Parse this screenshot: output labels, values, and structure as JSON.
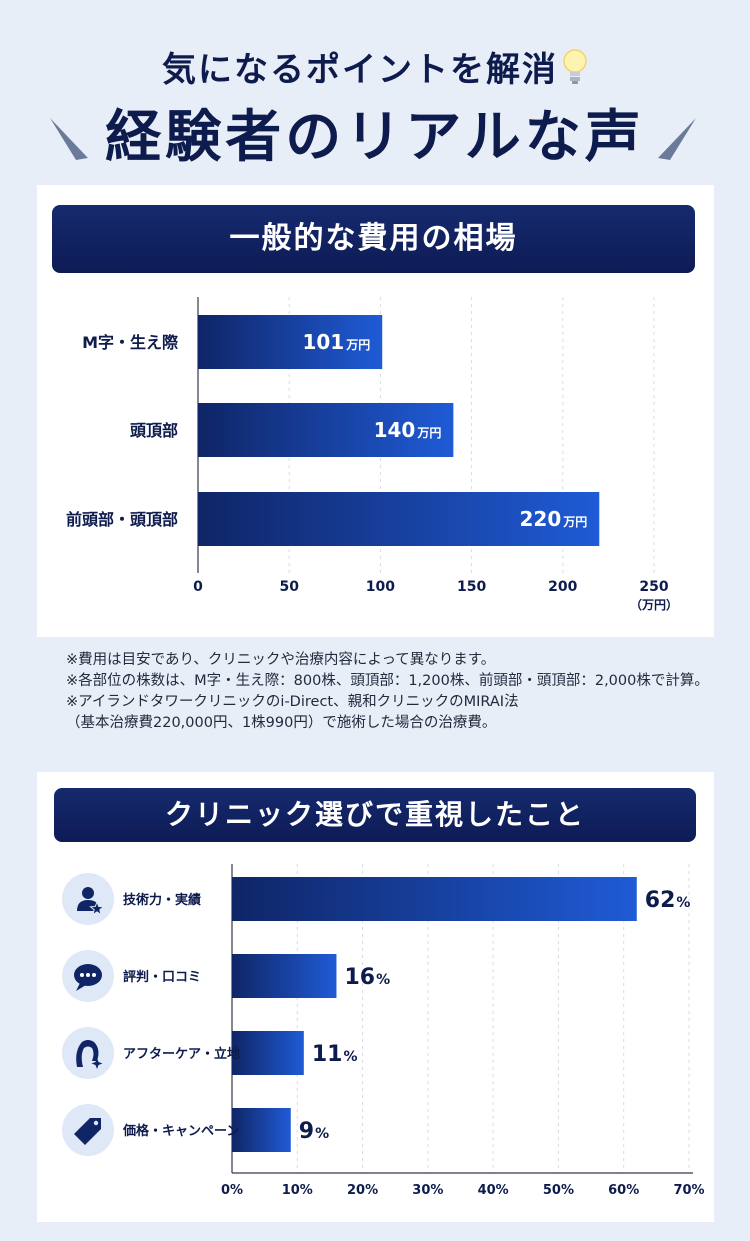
{
  "header": {
    "subtitle": "気になるポイントを解消",
    "title": "経験者のリアルな声"
  },
  "cost_section": {
    "heading": "一般的な費用の相場",
    "value_unit": "万円",
    "axis_unit": "（万円）"
  },
  "notes": [
    "※費用は目安であり、クリニックや治療内容によって異なります。",
    "※各部位の株数は、M字・生え際：800株、頭頂部：1,200株、前頭部・頭頂部：2,000株で計算。",
    "※アイランドタワークリニックのi-Direct、親和クリニックのMIRAI法",
    "（基本治療費220,000円、1株990円）で施術した場合の治療費。"
  ],
  "survey_section": {
    "heading": "クリニック選びで重視したこと",
    "value_unit": "%"
  },
  "colors": {
    "navy": "#0e1b4d",
    "bar_dark": "#0f2a7a",
    "bar_light": "#1f5bd6",
    "icon_bg": "#dfe8f7",
    "background": "#e8eef8"
  },
  "chart_data": [
    {
      "type": "bar",
      "orientation": "horizontal",
      "title": "一般的な費用の相場",
      "categories": [
        "M字・生え際",
        "頭頂部",
        "前頭部・頭頂部"
      ],
      "values": [
        101,
        140,
        220
      ],
      "value_labels": [
        "101",
        "140",
        "220"
      ],
      "xlim": [
        0,
        250
      ],
      "xticks": [
        "0",
        "50",
        "100",
        "150",
        "200",
        "250"
      ],
      "xlabel": "（万円）",
      "grid": true
    },
    {
      "type": "bar",
      "orientation": "horizontal",
      "title": "クリニック選びで重視したこと",
      "categories": [
        "技術力・実績",
        "評判・口コミ",
        "アフターケア・立地",
        "価格・キャンペーン"
      ],
      "icons": [
        "person-star-icon",
        "speech-bubble-icon",
        "woman-sparkle-icon",
        "price-tag-icon"
      ],
      "values": [
        62,
        16,
        11,
        9
      ],
      "value_labels": [
        "62",
        "16",
        "11",
        "9"
      ],
      "xlim": [
        0,
        70
      ],
      "xticks": [
        "0%",
        "10%",
        "20%",
        "30%",
        "40%",
        "50%",
        "60%",
        "70%"
      ],
      "grid": true
    }
  ]
}
